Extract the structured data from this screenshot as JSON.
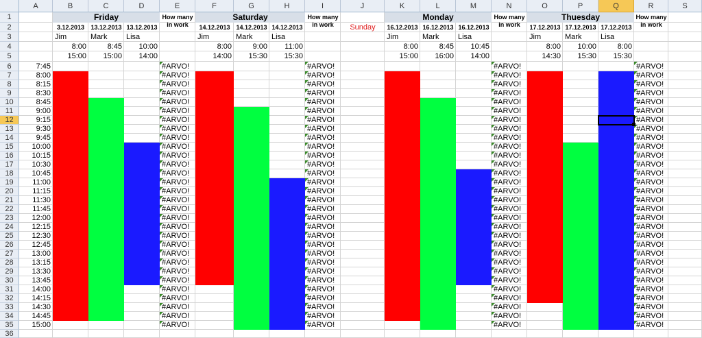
{
  "columns": [
    "A",
    "B",
    "C",
    "D",
    "E",
    "F",
    "G",
    "H",
    "I",
    "J",
    "K",
    "L",
    "M",
    "N",
    "O",
    "P",
    "Q",
    "R",
    "S"
  ],
  "selected_column": "Q",
  "selected_row": 12,
  "rows": [
    1,
    2,
    3,
    4,
    5,
    6,
    7,
    8,
    9,
    10,
    11,
    12,
    13,
    14,
    15,
    16,
    17,
    18,
    19,
    20,
    21,
    22,
    23,
    24,
    25,
    26,
    27,
    28,
    29,
    30,
    31,
    32,
    33,
    34,
    35,
    36
  ],
  "times": [
    "7:45",
    "8:00",
    "8:15",
    "8:30",
    "8:45",
    "9:00",
    "9:15",
    "9:30",
    "9:45",
    "10:00",
    "10:15",
    "10:30",
    "10:45",
    "11:00",
    "11:15",
    "11:30",
    "11:45",
    "12:00",
    "12:15",
    "12:30",
    "12:45",
    "13:00",
    "13:15",
    "13:30",
    "13:45",
    "14:00",
    "14:15",
    "14:30",
    "14:45",
    "15:00"
  ],
  "error_text": "#ARVO!",
  "how_many_label_line1": "How many",
  "how_many_label_line2": "in work",
  "sunday": {
    "label": "Sunday",
    "color": "#e02020"
  },
  "days": [
    {
      "name": "Friday",
      "people": [
        {
          "date": "3.12.2013",
          "name": "Jim",
          "start": "8:00",
          "end": "15:00",
          "color": "#ff0000"
        },
        {
          "date": "13.12.2013",
          "name": "Mark",
          "start": "8:45",
          "end": "15:00",
          "color": "#00ff40"
        },
        {
          "date": "13.12.2013",
          "name": "Lisa",
          "start": "10:00",
          "end": "14:00",
          "color": "#1a1aff"
        }
      ]
    },
    {
      "name": "Saturday",
      "people": [
        {
          "date": "14.12.2013",
          "name": "Jim",
          "start": "8:00",
          "end": "14:00",
          "color": "#ff0000"
        },
        {
          "date": "14.12.2013",
          "name": "Mark",
          "start": "9:00",
          "end": "15:30",
          "color": "#00ff40"
        },
        {
          "date": "14.12.2013",
          "name": "Lisa",
          "start": "11:00",
          "end": "15:30",
          "color": "#1a1aff"
        }
      ]
    },
    {
      "name": "Monday",
      "people": [
        {
          "date": "16.12.2013",
          "name": "Jim",
          "start": "8:00",
          "end": "15:00",
          "color": "#ff0000"
        },
        {
          "date": "16.12.2013",
          "name": "Mark",
          "start": "8:45",
          "end": "16:00",
          "color": "#00ff40"
        },
        {
          "date": "16.12.2013",
          "name": "Lisa",
          "start": "10:45",
          "end": "14:00",
          "color": "#1a1aff"
        }
      ]
    },
    {
      "name": "Thuesday",
      "people": [
        {
          "date": "17.12.2013",
          "name": "Jim",
          "start": "8:00",
          "end": "14:30",
          "color": "#ff0000"
        },
        {
          "date": "17.12.2013",
          "name": "Mark",
          "start": "10:00",
          "end": "15:30",
          "color": "#00ff40"
        },
        {
          "date": "17.12.2013",
          "name": "Lisa",
          "start": "8:00",
          "end": "15:30",
          "color": "#1a1aff"
        }
      ]
    }
  ]
}
